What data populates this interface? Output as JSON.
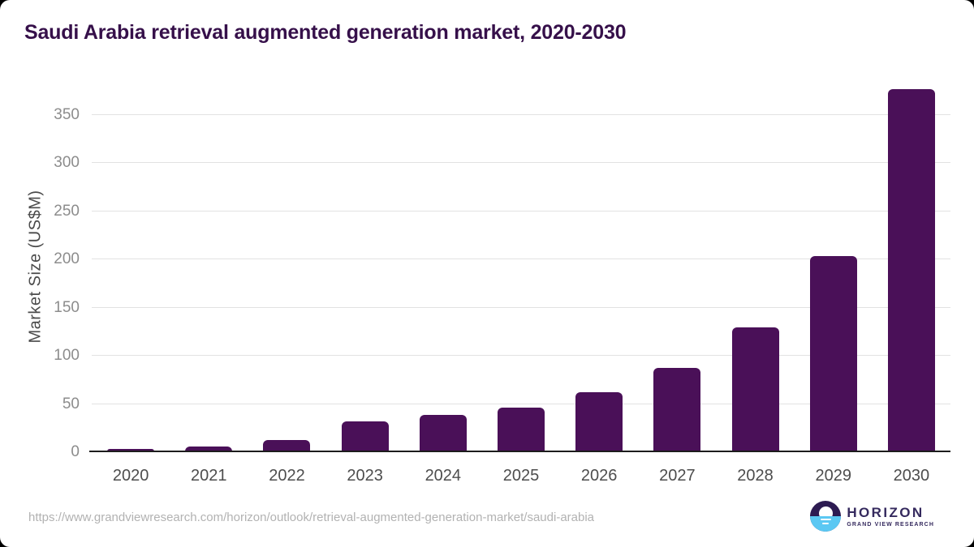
{
  "window": {
    "background": "#000000",
    "card_background": "#ffffff"
  },
  "header": {
    "title": "Saudi Arabia retrieval augmented generation market, 2020-2030",
    "title_color": "#36104a"
  },
  "chart_data": {
    "type": "bar",
    "title": "Saudi Arabia retrieval augmented generation market, 2020-2030",
    "categories": [
      "2020",
      "2021",
      "2022",
      "2023",
      "2024",
      "2025",
      "2026",
      "2027",
      "2028",
      "2029",
      "2030"
    ],
    "values": [
      2.5,
      4.8,
      12.0,
      31.4,
      37.5,
      45.4,
      61.0,
      86.5,
      128.5,
      203.0,
      376.0
    ],
    "xlabel": "",
    "ylabel": "Market Size (US$M)",
    "ylim": [
      0,
      385
    ],
    "yticks": [
      0,
      50,
      100,
      150,
      200,
      250,
      300,
      350
    ],
    "grid": true,
    "legend": false,
    "bar_color": "#4a1058",
    "gridline_color": "#e2e2e2",
    "axis_line_color": "#1c1c1c",
    "ytick_color": "#8c8c8c",
    "xtick_color": "#4d4d4d",
    "ylabel_color": "#4a4a4a"
  },
  "footer": {
    "source_url": "https://www.grandviewresearch.com/horizon/outlook/retrieval-augmented-generation-market/saudi-arabia",
    "url_color": "#b2b2b2",
    "logo": {
      "brand": "HORIZON",
      "subtitle": "GRAND VIEW RESEARCH",
      "text_color": "#352a5e",
      "mark_sky_color": "#2d1b52",
      "mark_sea_color": "#5bc8f3"
    }
  }
}
